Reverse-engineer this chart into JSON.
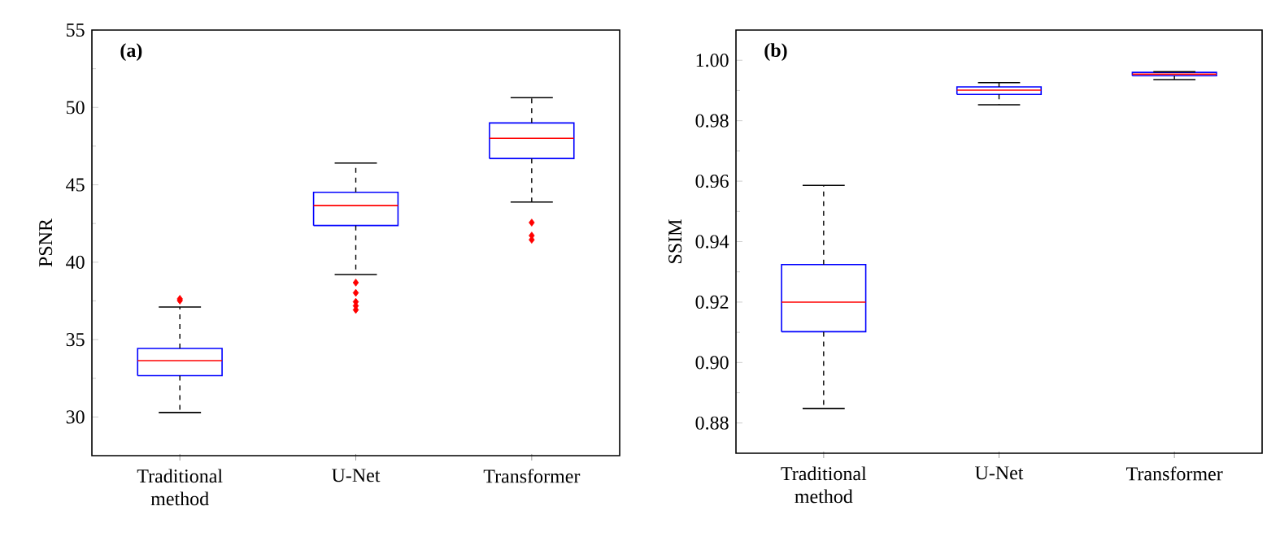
{
  "chart_data": [
    {
      "type": "box",
      "ylabel": "PSNR",
      "annotations": [
        "(a)"
      ],
      "categories": [
        "Traditional method",
        "U-Net",
        "Transformer"
      ],
      "color": "#0000ff",
      "marker": "diamond",
      "ylim": [
        27.5,
        55
      ],
      "yticks": [
        30,
        35,
        40,
        45,
        50,
        55
      ],
      "boxes": [
        {
          "low": 30.29,
          "q1": 32.67,
          "median": 33.64,
          "q3": 34.43,
          "high": 37.1,
          "outliers": [
            37.63,
            37.52
          ]
        },
        {
          "low": 39.2,
          "q1": 42.37,
          "median": 43.66,
          "q3": 44.52,
          "high": 46.41,
          "outliers": [
            38.68,
            38.02,
            37.44,
            37.18,
            36.92
          ]
        },
        {
          "low": 43.89,
          "q1": 46.7,
          "median": 48.01,
          "q3": 49.0,
          "high": 50.63,
          "outliers": [
            42.56,
            41.72,
            41.45
          ]
        }
      ]
    },
    {
      "type": "box",
      "ylabel": "SSIM",
      "annotations": [
        "(b)"
      ],
      "categories": [
        "Traditional method",
        "U-Net",
        "Transformer"
      ],
      "color": "#0000ff",
      "ylim": [
        0.87,
        1.01
      ],
      "yticks": [
        {
          "value": 0.88,
          "label": "0.88"
        },
        {
          "value": 0.9,
          "label": "0.90"
        },
        {
          "value": 0.92,
          "label": "0.92"
        },
        {
          "value": 0.94,
          "label": "0.94"
        },
        {
          "value": 0.96,
          "label": "0.96"
        },
        {
          "value": 0.98,
          "label": "0.98"
        },
        {
          "value": 1.0,
          "label": "1.00"
        }
      ],
      "boxes": [
        {
          "low": 0.8848,
          "q1": 0.9102,
          "median": 0.92,
          "q3": 0.9324,
          "high": 0.9586
        },
        {
          "low": 0.9853,
          "q1": 0.9887,
          "median": 0.9901,
          "q3": 0.9912,
          "high": 0.9926
        },
        {
          "low": 0.9936,
          "q1": 0.9949,
          "median": 0.9954,
          "q3": 0.996,
          "high": 0.9962
        }
      ]
    }
  ]
}
